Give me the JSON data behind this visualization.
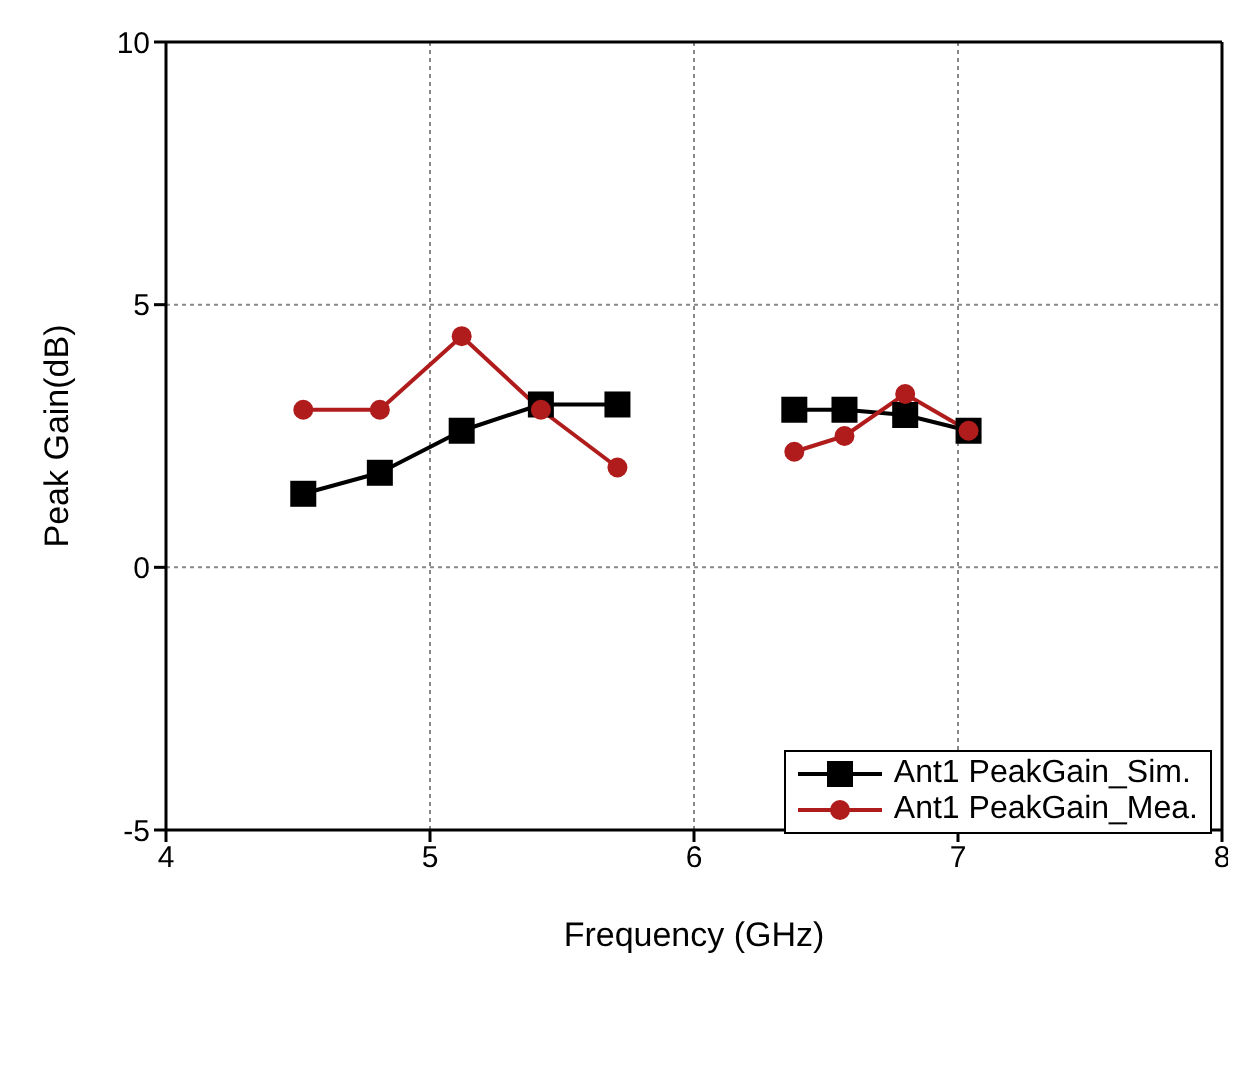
{
  "chart_data": {
    "type": "line",
    "xlabel": "Frequency (GHz)",
    "ylabel": "Peak Gain(dB)",
    "x": [
      4.52,
      4.81,
      5.12,
      5.42,
      5.71,
      6.05,
      6.38,
      6.57,
      6.8,
      7.04
    ],
    "series": [
      {
        "name": "Ant1 PeakGain_Sim.",
        "color": "#000000",
        "marker": "square",
        "values": [
          1.4,
          1.8,
          2.6,
          3.1,
          3.1,
          null,
          3.0,
          3.0,
          2.9,
          2.6
        ]
      },
      {
        "name": "Ant1 PeakGain_Mea.",
        "color": "#b01c1c",
        "marker": "circle",
        "values": [
          3.0,
          3.0,
          4.4,
          3.0,
          1.9,
          null,
          2.2,
          2.5,
          3.3,
          2.6
        ]
      }
    ],
    "xlim": [
      4,
      8
    ],
    "xticks": [
      4,
      5,
      6,
      7,
      8
    ],
    "ylim": [
      -5,
      10
    ],
    "yticks": [
      -5,
      0,
      5,
      10
    ],
    "grid": true,
    "legend": "bottom right",
    "line_style": "solid"
  }
}
